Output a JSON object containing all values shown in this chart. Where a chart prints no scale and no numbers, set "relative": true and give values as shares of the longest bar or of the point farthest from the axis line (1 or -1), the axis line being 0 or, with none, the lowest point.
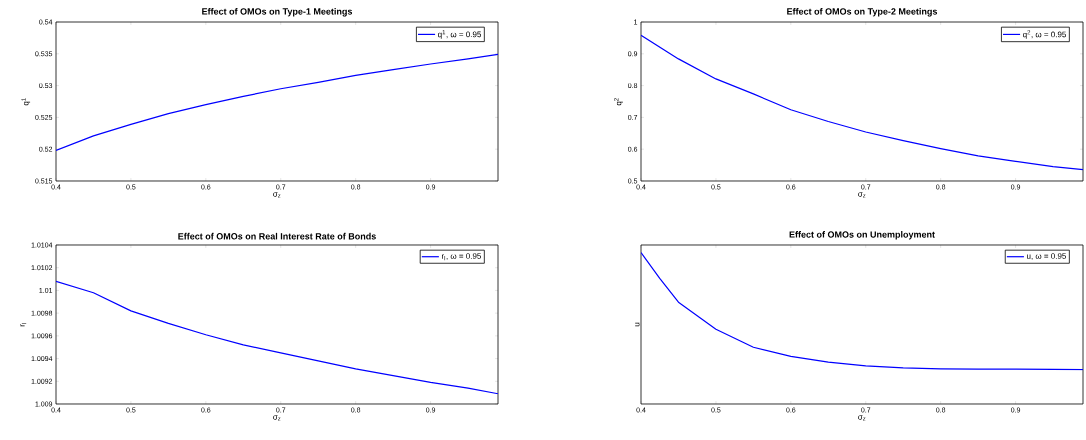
{
  "chart_data": [
    {
      "type": "line",
      "title": "Effect of OMOs on Type-1 Meetings",
      "xlabel": "σ$_{z}$",
      "ylabel": "q$^{1}$",
      "x": [
        0.4,
        0.45,
        0.5,
        0.55,
        0.6,
        0.65,
        0.7,
        0.75,
        0.8,
        0.85,
        0.9,
        0.95,
        0.99
      ],
      "xlim": [
        0.4,
        0.99
      ],
      "ylim": [
        0.515,
        0.54
      ],
      "xticks": [
        0.4,
        0.5,
        0.6,
        0.7,
        0.8,
        0.9
      ],
      "yticks": [
        0.515,
        0.52,
        0.525,
        0.53,
        0.535,
        0.54
      ],
      "legend": "top right",
      "series": [
        {
          "name": "q$^{1}$, ω = 0.95",
          "color": "#0000ff",
          "values": [
            0.5198,
            0.5221,
            0.5239,
            0.5256,
            0.527,
            0.5283,
            0.5295,
            0.5305,
            0.5316,
            0.5325,
            0.5334,
            0.5342,
            0.5349
          ]
        }
      ]
    },
    {
      "type": "line",
      "title": "Effect of OMOs on Type-2 Meetings",
      "xlabel": "σ$_{z}$",
      "ylabel": "q$^{2}$",
      "x": [
        0.4,
        0.45,
        0.5,
        0.55,
        0.6,
        0.65,
        0.7,
        0.75,
        0.8,
        0.85,
        0.9,
        0.95,
        0.99
      ],
      "xlim": [
        0.4,
        0.99
      ],
      "ylim": [
        0.5,
        1
      ],
      "xticks": [
        0.4,
        0.5,
        0.6,
        0.7,
        0.8,
        0.9
      ],
      "yticks": [
        0.5,
        0.6,
        0.7,
        0.8,
        0.9,
        1
      ],
      "legend": "top right",
      "series": [
        {
          "name": "q$^{2}$, ω = 0.95",
          "color": "#0000ff",
          "values": [
            0.958,
            0.884,
            0.821,
            0.774,
            0.724,
            0.687,
            0.654,
            0.627,
            0.602,
            0.579,
            0.562,
            0.545,
            0.536
          ]
        }
      ]
    },
    {
      "type": "line",
      "title": "Effect of OMOs on Real Interest Rate of Bonds",
      "xlabel": "σ$_{z}$",
      "ylabel": "r$_{l}$",
      "x": [
        0.4,
        0.45,
        0.5,
        0.55,
        0.6,
        0.65,
        0.7,
        0.75,
        0.8,
        0.85,
        0.9,
        0.95,
        0.99
      ],
      "xlim": [
        0.4,
        0.99
      ],
      "ylim": [
        1.009,
        1.0104
      ],
      "xticks": [
        0.4,
        0.5,
        0.6,
        0.7,
        0.8,
        0.9
      ],
      "yticks": [
        1.009,
        1.0092,
        1.0094,
        1.0096,
        1.0098,
        1.01,
        1.0102,
        1.0104
      ],
      "legend": "top right",
      "series": [
        {
          "name": "r$_{l}$, ω = 0.95",
          "color": "#0000ff",
          "values": [
            1.01008,
            1.00998,
            1.00982,
            1.00971,
            1.00961,
            1.00952,
            1.00945,
            1.00938,
            1.00931,
            1.00925,
            1.00919,
            1.00914,
            1.00909
          ]
        }
      ]
    },
    {
      "type": "line",
      "title": "Effect of OMOs on Unemployment",
      "xlabel": "σ$_{z}$",
      "ylabel": "u",
      "x": [
        0.4,
        0.425,
        0.45,
        0.5,
        0.55,
        0.6,
        0.65,
        0.7,
        0.75,
        0.8,
        0.85,
        0.9,
        0.95,
        0.99
      ],
      "xlim": [
        0.4,
        0.99
      ],
      "relative": true,
      "xticks": [
        0.4,
        0.5,
        0.6,
        0.7,
        0.8,
        0.9
      ],
      "legend": "top right",
      "series": [
        {
          "name": "u, ω = 0.95",
          "color": "#0000ff",
          "values": [
            1,
            0.83,
            0.672,
            0.494,
            0.375,
            0.314,
            0.277,
            0.252,
            0.238,
            0.232,
            0.23,
            0.23,
            0.229,
            0.227
          ]
        }
      ]
    }
  ]
}
